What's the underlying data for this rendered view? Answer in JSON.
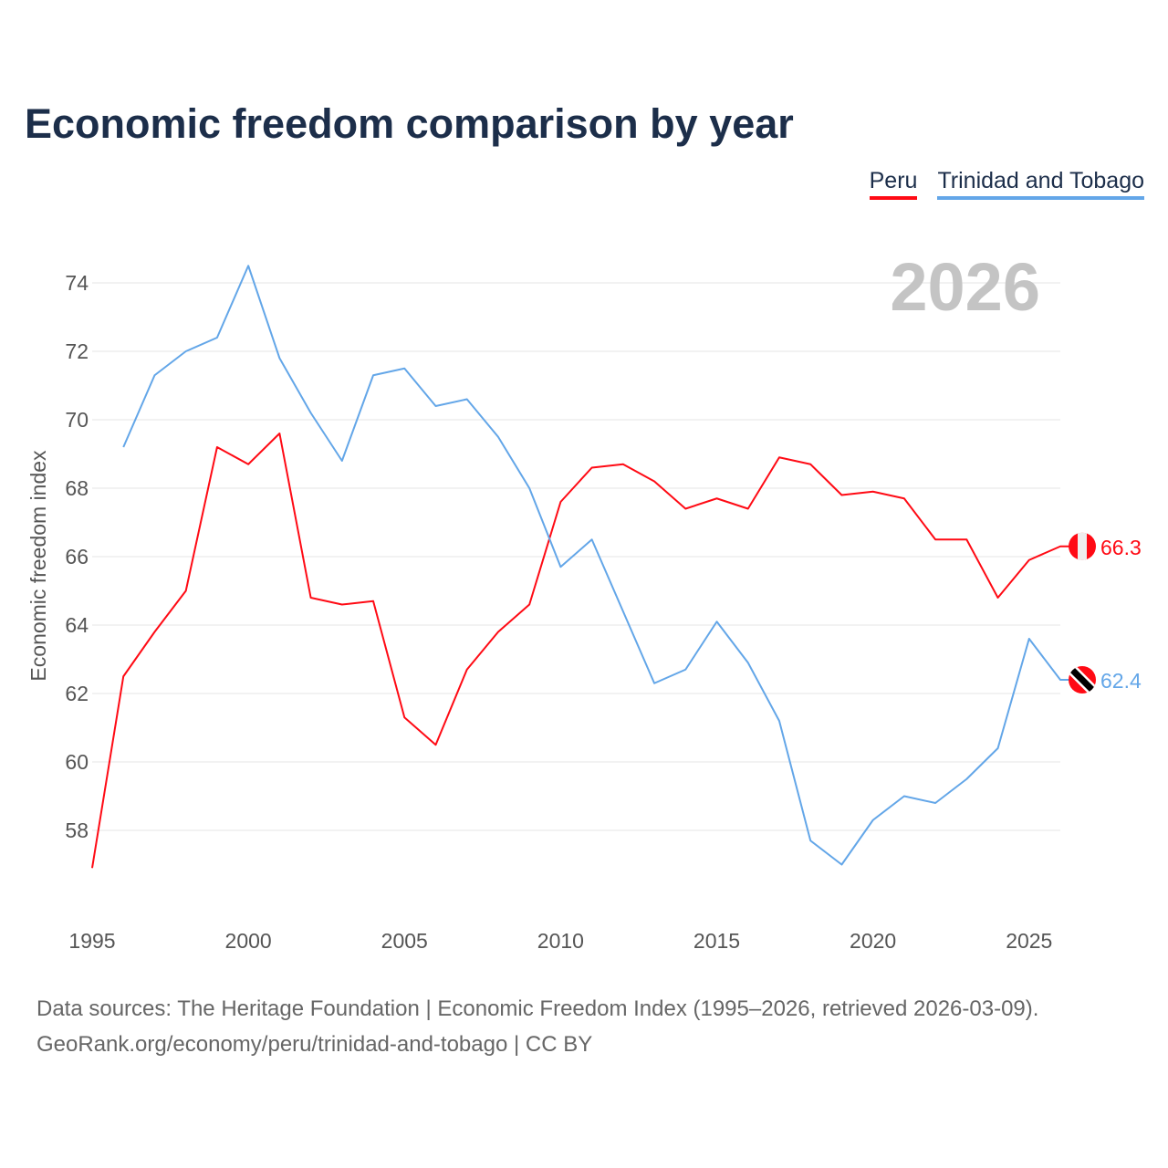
{
  "title": "Economic freedom comparison by year",
  "source_line1": "Data sources: The Heritage Foundation | Economic Freedom Index (1995–2026, retrieved 2026-03-09).",
  "source_line2": "GeoRank.org/economy/peru/trinidad-and-tobago | CC BY",
  "chart_data": {
    "type": "line",
    "title": "Economic freedom comparison by year",
    "xlabel": "",
    "ylabel": "Economic freedom index",
    "year_watermark": "2026",
    "xlim": [
      1995,
      2026
    ],
    "ylim": [
      56,
      75
    ],
    "x_ticks": [
      1995,
      2000,
      2005,
      2010,
      2015,
      2020,
      2025
    ],
    "y_ticks": [
      58,
      60,
      62,
      64,
      66,
      68,
      70,
      72,
      74
    ],
    "legend_position": "top-right",
    "series": [
      {
        "name": "Peru",
        "color": "#ff0a14",
        "end_label": "66.3",
        "flag": "peru",
        "x": [
          1995,
          1996,
          1997,
          1998,
          1999,
          2000,
          2001,
          2002,
          2003,
          2004,
          2005,
          2006,
          2007,
          2008,
          2009,
          2010,
          2011,
          2012,
          2013,
          2014,
          2015,
          2016,
          2017,
          2018,
          2019,
          2020,
          2021,
          2022,
          2023,
          2024,
          2025,
          2026
        ],
        "values": [
          56.9,
          62.5,
          63.8,
          65.0,
          69.2,
          68.7,
          69.6,
          64.8,
          64.6,
          64.7,
          61.3,
          60.5,
          62.7,
          63.8,
          64.6,
          67.6,
          68.6,
          68.7,
          68.2,
          67.4,
          67.7,
          67.4,
          68.9,
          68.7,
          67.8,
          67.9,
          67.7,
          66.5,
          66.5,
          64.8,
          65.9,
          66.3
        ]
      },
      {
        "name": "Trinidad and Tobago",
        "color": "#63a6e8",
        "end_label": "62.4",
        "flag": "trinidad-and-tobago",
        "x": [
          1996,
          1997,
          1998,
          1999,
          2000,
          2001,
          2002,
          2003,
          2004,
          2005,
          2006,
          2007,
          2008,
          2009,
          2010,
          2011,
          2012,
          2013,
          2014,
          2015,
          2016,
          2017,
          2018,
          2019,
          2020,
          2021,
          2022,
          2023,
          2024,
          2025,
          2026
        ],
        "values": [
          69.2,
          71.3,
          72.0,
          72.4,
          74.5,
          71.8,
          70.2,
          68.8,
          71.3,
          71.5,
          70.4,
          70.6,
          69.5,
          68.0,
          65.7,
          66.5,
          64.4,
          62.3,
          62.7,
          64.1,
          62.9,
          61.2,
          57.7,
          57.0,
          58.3,
          59.0,
          58.8,
          59.5,
          60.4,
          63.6,
          62.4
        ]
      }
    ]
  }
}
